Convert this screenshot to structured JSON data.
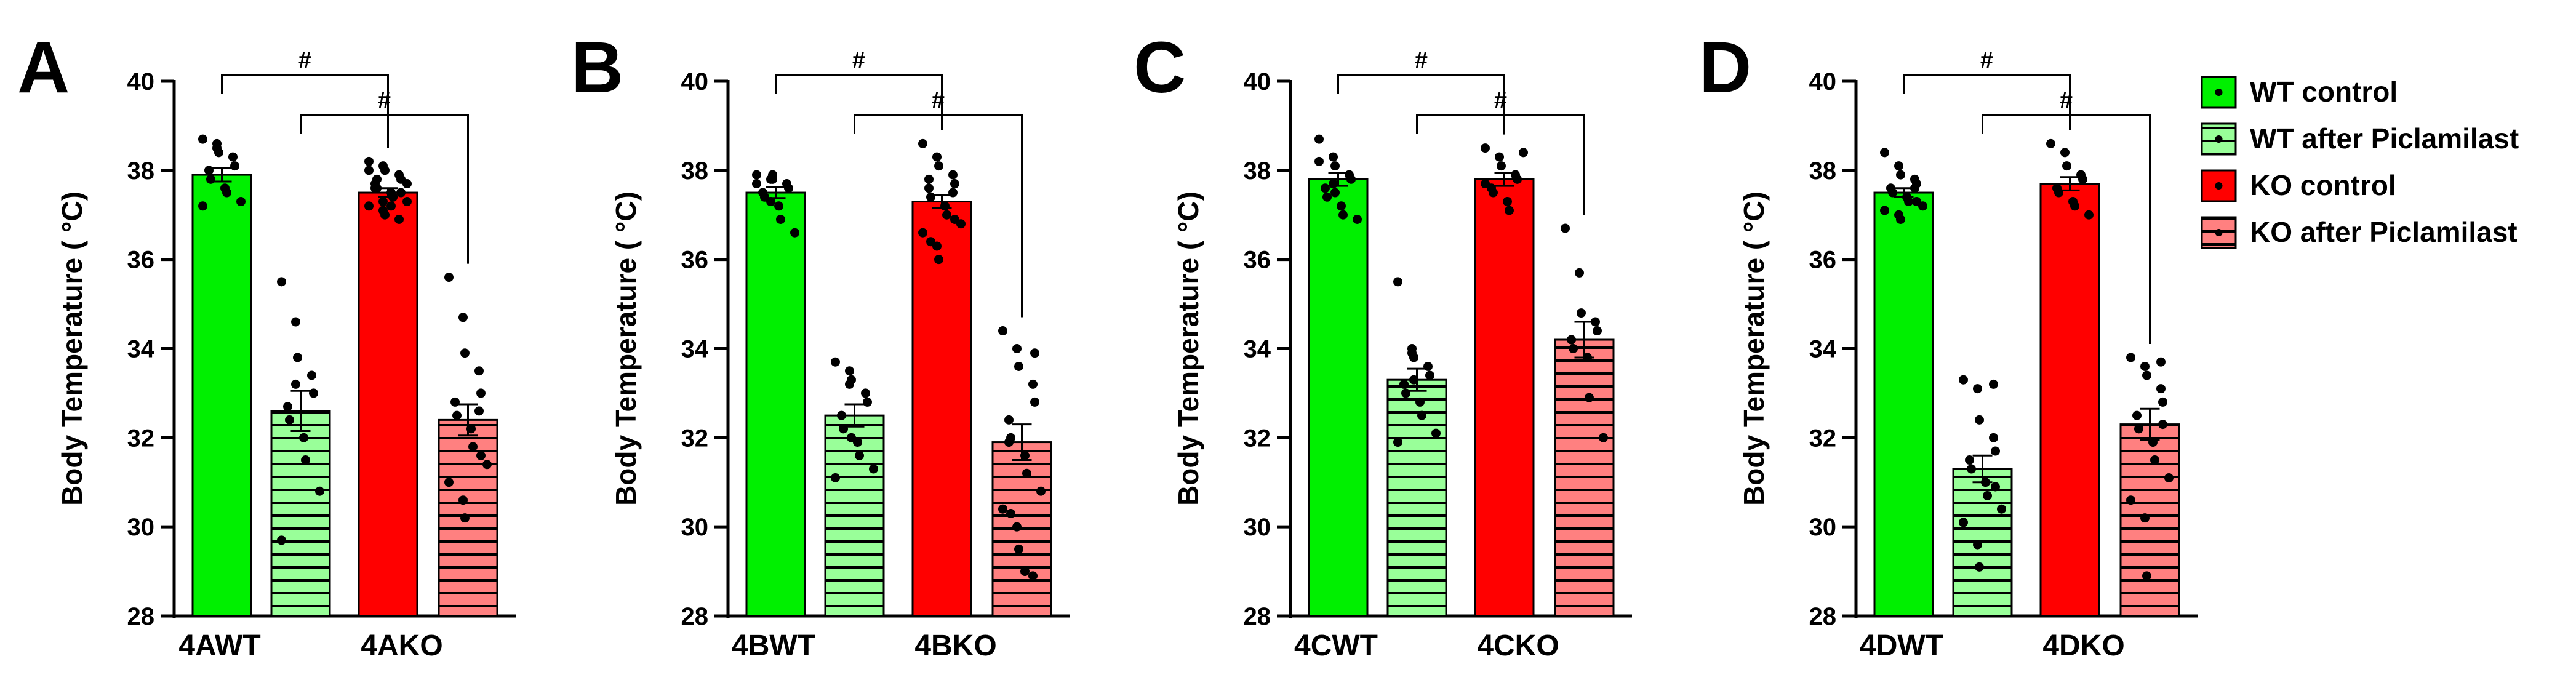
{
  "colors": {
    "wt_control": "#00f000",
    "wt_after": "#99ff99",
    "ko_control": "#ff0000",
    "ko_after": "#ff8080",
    "stripe": "#000000",
    "ink": "#000000"
  },
  "legend": {
    "items": [
      {
        "label": "WT control",
        "key": "wt_control",
        "striped": false
      },
      {
        "label": "WT after Piclamilast",
        "key": "wt_after",
        "striped": true
      },
      {
        "label": "KO control",
        "key": "ko_control",
        "striped": false
      },
      {
        "label": "KO after Piclamilast",
        "key": "ko_after",
        "striped": true
      }
    ]
  },
  "chart_data": [
    {
      "type": "bar",
      "panel_label": "A",
      "ylabel": "Body Temperature ( °C)",
      "ylim": [
        28,
        40
      ],
      "yticks": [
        28,
        30,
        32,
        34,
        36,
        38,
        40
      ],
      "categories": [
        "4AWT",
        "4AKO"
      ],
      "significance": [
        {
          "from": 0,
          "to": 2,
          "label": "#"
        },
        {
          "from": 1,
          "to": 3,
          "label": "#"
        }
      ],
      "bars": [
        {
          "group": "WT control",
          "color_key": "wt_control",
          "striped": false,
          "mean": 37.9,
          "sem": 0.15,
          "points": [
            38.7,
            38.5,
            38.4,
            38.3,
            38.1,
            38.0,
            37.8,
            37.6,
            37.5,
            37.3,
            37.2,
            38.6
          ]
        },
        {
          "group": "WT after Piclamilast",
          "color_key": "wt_after",
          "striped": true,
          "mean": 32.6,
          "sem": 0.45,
          "points": [
            35.5,
            34.6,
            33.8,
            33.4,
            33.0,
            32.7,
            32.4,
            32.0,
            31.5,
            30.8,
            29.7,
            33.2
          ]
        },
        {
          "group": "KO control",
          "color_key": "ko_control",
          "striped": false,
          "mean": 37.5,
          "sem": 0.1,
          "points": [
            38.2,
            38.1,
            38.0,
            37.9,
            37.8,
            37.7,
            37.6,
            37.5,
            37.4,
            37.3,
            37.2,
            37.1,
            37.0,
            36.9,
            37.5,
            37.6,
            37.8,
            37.2,
            37.4,
            37.7,
            38.0,
            37.3
          ]
        },
        {
          "group": "KO after Piclamilast",
          "color_key": "ko_after",
          "striped": true,
          "mean": 32.4,
          "sem": 0.35,
          "points": [
            35.6,
            34.7,
            33.9,
            33.5,
            33.0,
            32.8,
            32.5,
            32.2,
            31.8,
            31.4,
            31.0,
            30.6,
            30.2,
            32.6,
            31.6
          ]
        }
      ]
    },
    {
      "type": "bar",
      "panel_label": "B",
      "ylabel": "Body Temperature ( °C)",
      "ylim": [
        28,
        40
      ],
      "yticks": [
        28,
        30,
        32,
        34,
        36,
        38,
        40
      ],
      "categories": [
        "4BWT",
        "4BKO"
      ],
      "significance": [
        {
          "from": 0,
          "to": 2,
          "label": "#"
        },
        {
          "from": 1,
          "to": 3,
          "label": "#"
        }
      ],
      "bars": [
        {
          "group": "WT control",
          "color_key": "wt_control",
          "striped": false,
          "mean": 37.5,
          "sem": 0.12,
          "points": [
            37.9,
            37.8,
            37.8,
            37.7,
            37.6,
            37.5,
            37.4,
            37.2,
            36.9,
            36.6,
            37.7,
            37.3,
            37.9
          ]
        },
        {
          "group": "WT after Piclamilast",
          "color_key": "wt_after",
          "striped": true,
          "mean": 32.5,
          "sem": 0.25,
          "points": [
            33.7,
            33.5,
            33.3,
            33.0,
            32.8,
            32.5,
            32.2,
            31.9,
            31.6,
            31.3,
            31.1,
            33.2,
            32.0
          ]
        },
        {
          "group": "KO control",
          "color_key": "ko_control",
          "striped": false,
          "mean": 37.3,
          "sem": 0.15,
          "points": [
            38.6,
            38.3,
            38.1,
            37.9,
            37.7,
            37.6,
            37.4,
            37.2,
            37.0,
            36.8,
            36.6,
            36.3,
            36.0,
            37.5,
            36.9,
            37.8,
            36.4
          ]
        },
        {
          "group": "KO after Piclamilast",
          "color_key": "ko_after",
          "striped": true,
          "mean": 31.9,
          "sem": 0.4,
          "points": [
            34.4,
            34.0,
            33.6,
            33.2,
            32.8,
            32.4,
            32.0,
            31.6,
            31.2,
            30.8,
            30.4,
            30.0,
            29.5,
            28.9,
            33.9,
            31.9,
            30.3,
            29.0
          ]
        }
      ]
    },
    {
      "type": "bar",
      "panel_label": "C",
      "ylabel": "Body Temperature ( °C)",
      "ylim": [
        28,
        40
      ],
      "yticks": [
        28,
        30,
        32,
        34,
        36,
        38,
        40
      ],
      "categories": [
        "4CWT",
        "4CKO"
      ],
      "significance": [
        {
          "from": 0,
          "to": 2,
          "label": "#"
        },
        {
          "from": 1,
          "to": 3,
          "label": "#"
        }
      ],
      "bars": [
        {
          "group": "WT control",
          "color_key": "wt_control",
          "striped": false,
          "mean": 37.8,
          "sem": 0.15,
          "points": [
            38.7,
            38.3,
            38.1,
            37.9,
            37.8,
            37.6,
            37.4,
            37.2,
            37.0,
            36.9,
            38.2,
            37.7,
            37.5
          ]
        },
        {
          "group": "WT after Piclamilast",
          "color_key": "wt_after",
          "striped": true,
          "mean": 33.3,
          "sem": 0.25,
          "points": [
            35.5,
            34.0,
            33.8,
            33.6,
            33.4,
            33.2,
            33.0,
            32.8,
            32.5,
            32.1,
            31.9,
            33.9,
            33.3
          ]
        },
        {
          "group": "KO control",
          "color_key": "ko_control",
          "striped": false,
          "mean": 37.8,
          "sem": 0.15,
          "points": [
            38.5,
            38.3,
            38.1,
            37.9,
            37.8,
            37.6,
            37.5,
            37.3,
            37.1,
            38.4,
            37.7
          ]
        },
        {
          "group": "KO after Piclamilast",
          "color_key": "ko_after",
          "striped": true,
          "mean": 34.2,
          "sem": 0.4,
          "points": [
            36.7,
            35.7,
            34.8,
            34.6,
            34.4,
            34.2,
            34.0,
            33.8,
            32.9,
            32.0
          ]
        }
      ]
    },
    {
      "type": "bar",
      "panel_label": "D",
      "ylabel": "Body Temperature ( °C)",
      "ylim": [
        28,
        40
      ],
      "yticks": [
        28,
        30,
        32,
        34,
        36,
        38,
        40
      ],
      "categories": [
        "4DWT",
        "4DKO"
      ],
      "significance": [
        {
          "from": 0,
          "to": 2,
          "label": "#"
        },
        {
          "from": 1,
          "to": 3,
          "label": "#"
        }
      ],
      "bars": [
        {
          "group": "WT control",
          "color_key": "wt_control",
          "striped": false,
          "mean": 37.5,
          "sem": 0.1,
          "points": [
            38.4,
            38.1,
            37.9,
            37.8,
            37.7,
            37.6,
            37.5,
            37.4,
            37.3,
            37.2,
            37.1,
            37.0,
            36.9,
            37.6,
            37.3
          ]
        },
        {
          "group": "WT after Piclamilast",
          "color_key": "wt_after",
          "striped": true,
          "mean": 31.3,
          "sem": 0.3,
          "points": [
            33.3,
            33.1,
            32.4,
            32.0,
            31.7,
            31.5,
            31.3,
            31.0,
            30.7,
            30.4,
            30.1,
            29.6,
            29.1,
            33.2,
            30.9
          ]
        },
        {
          "group": "KO control",
          "color_key": "ko_control",
          "striped": false,
          "mean": 37.7,
          "sem": 0.15,
          "points": [
            38.6,
            38.4,
            38.1,
            37.9,
            37.8,
            37.6,
            37.5,
            37.3,
            37.2,
            37.0
          ]
        },
        {
          "group": "KO after Piclamilast",
          "color_key": "ko_after",
          "striped": true,
          "mean": 32.3,
          "sem": 0.35,
          "points": [
            33.8,
            33.6,
            33.4,
            33.1,
            32.8,
            32.5,
            32.2,
            31.9,
            31.5,
            31.1,
            30.6,
            30.2,
            28.9,
            33.7,
            32.3
          ]
        }
      ]
    }
  ]
}
